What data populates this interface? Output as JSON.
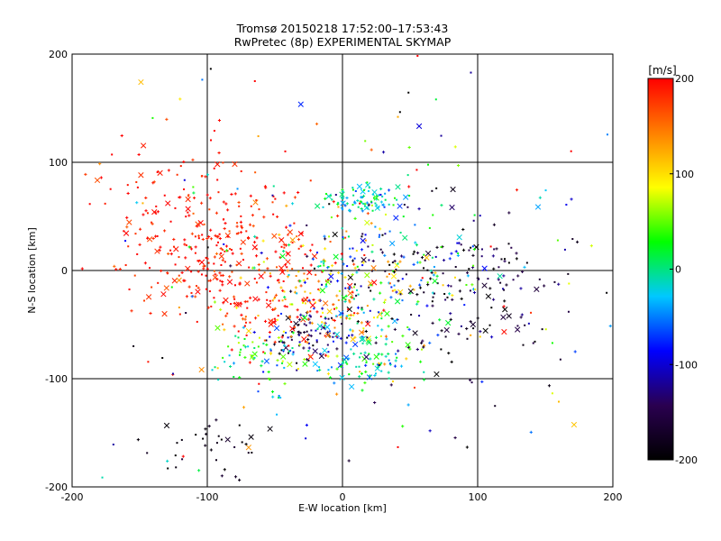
{
  "chart_data": {
    "type": "scatter",
    "title": "Tromsø 20150218 17:52:00–17:53:43",
    "subtitle": "RwPretec (8p) EXPERIMENTAL SKYMAP",
    "xlabel": "E-W location [km]",
    "ylabel": "N-S location [km]",
    "xlim": [
      -200,
      200
    ],
    "ylim": [
      -200,
      200
    ],
    "xticks": [
      "-200",
      "-100",
      "0",
      "100",
      "200"
    ],
    "yticks": [
      "-200",
      "-100",
      "0",
      "100",
      "200"
    ],
    "tick_values": [
      -200,
      -100,
      0,
      100,
      200
    ],
    "grid": true,
    "grid_values": [
      -100,
      0,
      100
    ],
    "colorbar": {
      "label": "[m/s]",
      "min": -200,
      "max": 200,
      "ticks": [
        "-200",
        "-100",
        "0",
        "100",
        "200"
      ],
      "tick_values": [
        -200,
        -100,
        0,
        100,
        200
      ],
      "colormap": [
        "#000000",
        "#2a0050",
        "#0000ff",
        "#00c8ff",
        "#00ff00",
        "#ffff00",
        "#ff8000",
        "#ff0000"
      ]
    },
    "clusters": [
      {
        "x": 15,
        "y": 65,
        "sx": 15,
        "sy": 6,
        "n": 90,
        "v": -10,
        "vs": 30
      },
      {
        "x": 20,
        "y": -85,
        "sx": 18,
        "sy": 10,
        "n": 70,
        "v": -10,
        "vs": 35
      },
      {
        "x": -25,
        "y": -60,
        "sx": 15,
        "sy": 12,
        "n": 80,
        "v": -140,
        "vs": 40
      },
      {
        "x": -90,
        "y": 20,
        "sx": 35,
        "sy": 40,
        "n": 280,
        "v": 190,
        "vs": 15
      },
      {
        "x": -40,
        "y": -30,
        "sx": 25,
        "sy": 30,
        "n": 160,
        "v": 160,
        "vs": 50
      },
      {
        "x": 10,
        "y": -20,
        "sx": 25,
        "sy": 35,
        "n": 220,
        "v": 30,
        "vs": 90
      },
      {
        "x": 90,
        "y": -20,
        "sx": 40,
        "sy": 40,
        "n": 160,
        "v": -170,
        "vs": 30
      },
      {
        "x": 70,
        "y": 10,
        "sx": 30,
        "sy": 25,
        "n": 60,
        "v": -80,
        "vs": 70
      },
      {
        "x": -60,
        "y": -80,
        "sx": 20,
        "sy": 15,
        "n": 70,
        "v": 10,
        "vs": 50
      },
      {
        "x": 0,
        "y": 0,
        "sx": 110,
        "sy": 100,
        "n": 200,
        "v": 20,
        "vs": 150
      },
      {
        "x": -150,
        "y": 60,
        "sx": 25,
        "sy": 40,
        "n": 50,
        "v": 190,
        "vs": 20
      },
      {
        "x": -100,
        "y": -160,
        "sx": 25,
        "sy": 15,
        "n": 35,
        "v": -190,
        "vs": 15
      }
    ]
  }
}
